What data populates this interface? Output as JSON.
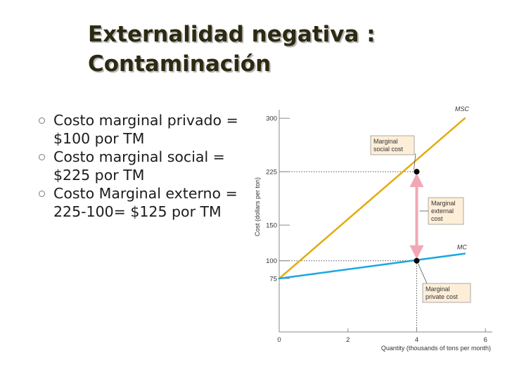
{
  "slide": {
    "title_line1": "Externalidad negativa :",
    "title_line2": "Contaminación",
    "bullets": [
      "Costo marginal privado = $100 por TM",
      "Costo marginal social = $225 por TM",
      "Costo Marginal externo = 225-100= $125 por TM"
    ]
  },
  "colors": {
    "msc_line": "#e3ab0f",
    "mc_line": "#1ca8e0",
    "arrow": "#f2a7b5",
    "annotation_box": "#fdeed8"
  },
  "chart_data": {
    "type": "line",
    "ylabel": "Cost (dollars per ton)",
    "xlabel": "Quantity (thousands of tons per month)",
    "xlim": [
      0,
      6.2
    ],
    "ylim": [
      0,
      312
    ],
    "x_ticks": [
      0,
      2,
      4,
      6
    ],
    "y_ticks": [
      75,
      100,
      150,
      225,
      300
    ],
    "series": [
      {
        "name": "MSC",
        "x": [
          0,
          5.4
        ],
        "values": [
          75,
          300
        ]
      },
      {
        "name": "MC",
        "x": [
          0,
          5.4
        ],
        "values": [
          75,
          110
        ]
      }
    ],
    "points": [
      {
        "x": 4,
        "y": 225
      },
      {
        "x": 4,
        "y": 100
      }
    ],
    "annotations": {
      "social": [
        "Marginal",
        "social cost"
      ],
      "external": [
        "Marginal",
        "external",
        "cost"
      ],
      "private": [
        "Marginal",
        "private cost"
      ]
    }
  }
}
